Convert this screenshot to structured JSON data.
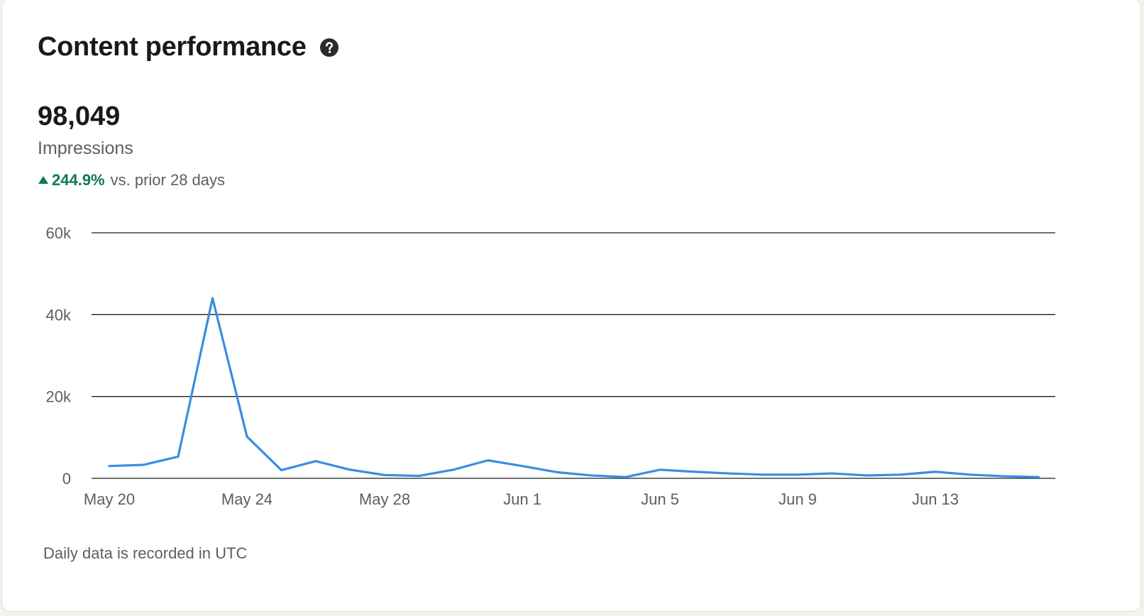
{
  "header": {
    "title": "Content performance",
    "help_icon": "help-circle-icon"
  },
  "metric": {
    "value": "98,049",
    "label": "Impressions",
    "change_icon": "triangle-up-icon",
    "change_value": "244.9%",
    "change_note": "vs. prior 28 days"
  },
  "colors": {
    "line": "#3b8de0",
    "positive": "#0f7a4c",
    "text": "#191919",
    "muted": "#5e5e5e"
  },
  "footnote": "Daily data is recorded in UTC",
  "chart_data": {
    "type": "line",
    "ylim": [
      0,
      60000
    ],
    "yticks": [
      0,
      20000,
      40000,
      60000
    ],
    "ytick_labels": [
      "0",
      "20k",
      "40k",
      "60k"
    ],
    "xtick_labels": [
      "May 20",
      "May 24",
      "May 28",
      "Jun 1",
      "Jun 5",
      "Jun 9",
      "Jun 13"
    ],
    "grid": true,
    "x": [
      "May 20",
      "May 21",
      "May 22",
      "May 23",
      "May 24",
      "May 25",
      "May 26",
      "May 27",
      "May 28",
      "May 29",
      "May 30",
      "May 31",
      "Jun 1",
      "Jun 2",
      "Jun 3",
      "Jun 4",
      "Jun 5",
      "Jun 6",
      "Jun 7",
      "Jun 8",
      "Jun 9",
      "Jun 10",
      "Jun 11",
      "Jun 12",
      "Jun 13",
      "Jun 14",
      "Jun 15",
      "Jun 16"
    ],
    "series": [
      {
        "values": [
          3000,
          3300,
          5300,
          44000,
          10200,
          2000,
          4200,
          2100,
          800,
          600,
          2100,
          4400,
          3000,
          1500,
          700,
          300,
          2100,
          1600,
          1200,
          900,
          900,
          1200,
          700,
          900,
          1600,
          900,
          500,
          300
        ]
      }
    ]
  }
}
